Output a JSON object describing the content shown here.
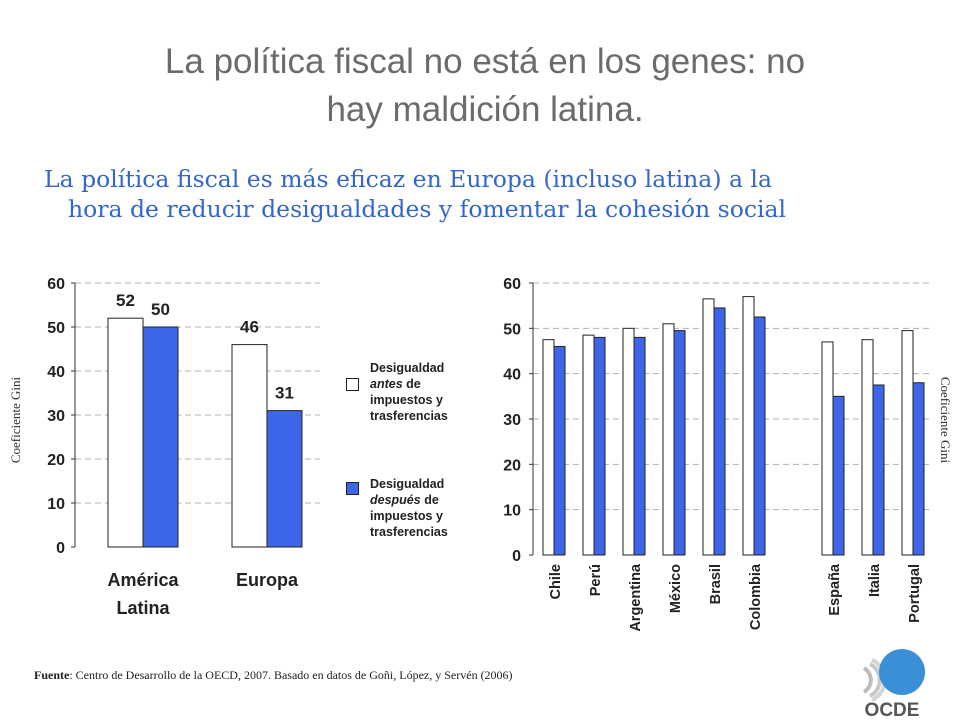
{
  "title": {
    "line1": "La política fiscal no está en los genes: no",
    "line2": "hay maldición latina."
  },
  "subtitle": {
    "line1": "La política fiscal es más eficaz en Europa (incluso latina) a la",
    "line2": "hora de reducir desigualdades y fomentar la cohesión social"
  },
  "axis_label": "Coeficiente Gini",
  "legend": {
    "before": {
      "w1": "Desigualdad",
      "em": "antes",
      "w2": " de",
      "rest": "impuestos y trasferencias",
      "color": "#ffffff"
    },
    "after": {
      "w1": "Desigualdad",
      "em": "después",
      "w2": " de",
      "rest": "impuestos y trasferencias",
      "color": "#3d67e8"
    }
  },
  "source": {
    "label": "Fuente",
    "text": ": Centro de Desarrollo de la OECD, 2007. Basado en datos de Goñi, López, y Servén (2006)"
  },
  "logo_text": "OCDE",
  "chart_data": [
    {
      "type": "bar",
      "title": "",
      "ylabel": "Coeficiente Gini",
      "ylim": [
        0,
        60
      ],
      "yticks": [
        0,
        10,
        20,
        30,
        40,
        50,
        60
      ],
      "categories": [
        "América Latina",
        "Europa"
      ],
      "series": [
        {
          "name": "Desigualdad antes de impuestos y trasferencias",
          "values": [
            52,
            46
          ],
          "color": "#ffffff"
        },
        {
          "name": "Desigualdad después de impuestos y trasferencias",
          "values": [
            50,
            31
          ],
          "color": "#3d67e8"
        }
      ],
      "data_labels": [
        "52",
        "50",
        "46",
        "31"
      ]
    },
    {
      "type": "bar",
      "title": "",
      "ylabel": "Coeficiente Gini",
      "ylim": [
        0,
        60
      ],
      "yticks": [
        0,
        10,
        20,
        30,
        40,
        50,
        60
      ],
      "categories": [
        "Chile",
        "Perú",
        "Argentina",
        "México",
        "Brasil",
        "Colombia",
        "España",
        "Italia",
        "Portugal"
      ],
      "series": [
        {
          "name": "Desigualdad antes de impuestos y trasferencias",
          "values": [
            47.5,
            48.5,
            50,
            51,
            56.5,
            57,
            47,
            47.5,
            49.5
          ],
          "color": "#ffffff"
        },
        {
          "name": "Desigualdad después de impuestos y trasferencias",
          "values": [
            46,
            48,
            48,
            49.5,
            54.5,
            52.5,
            35,
            37.5,
            38
          ],
          "color": "#3d67e8"
        }
      ]
    }
  ]
}
